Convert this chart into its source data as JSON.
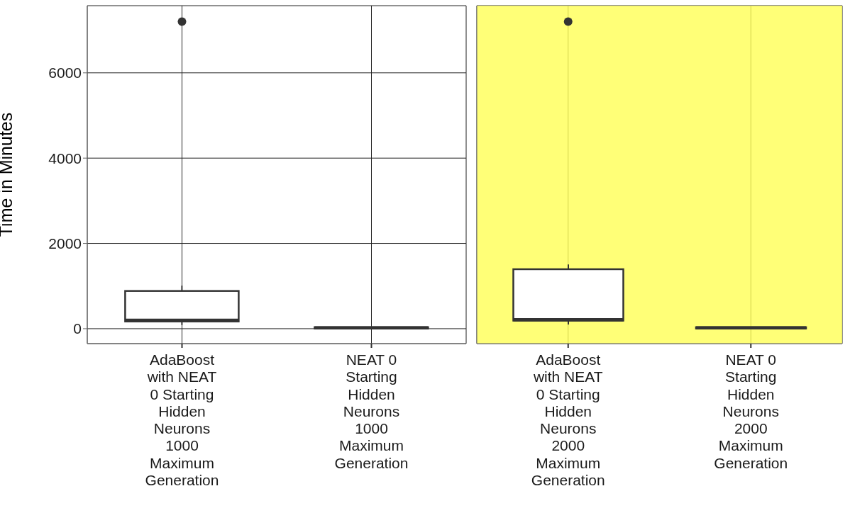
{
  "chart_data": [
    {
      "type": "box",
      "ylabel": "Time in Minutes",
      "categories": [
        "AdaBoost with NEAT 0 Starting Hidden Neurons 1000 Maximum Generation",
        "NEAT 0 Starting Hidden Neurons 1000 Maximum Generation"
      ],
      "boxes": [
        {
          "low": 85,
          "q1": 170,
          "median": 200,
          "q3": 885,
          "high": 1010,
          "outliers": [
            7200
          ]
        },
        {
          "low": 0,
          "q1": 5,
          "median": 20,
          "q3": 35,
          "high": 45
        }
      ],
      "color": "#333333",
      "ylim": [
        -350,
        7575
      ],
      "yticks": [
        0,
        2000,
        4000,
        6000
      ],
      "grid": true
    },
    {
      "type": "box",
      "categories": [
        "AdaBoost with NEAT 0 Starting Hidden Neurons 2000 Maximum Generation",
        "NEAT 0 Starting Hidden Neurons 2000 Maximum Generation"
      ],
      "boxes": [
        {
          "low": 100,
          "q1": 190,
          "median": 210,
          "q3": 1395,
          "high": 1505,
          "outliers": [
            7200
          ]
        },
        {
          "low": 0,
          "q1": 5,
          "median": 20,
          "q3": 35,
          "high": 45
        }
      ],
      "color": "#333333",
      "ylim": [
        -350,
        7575
      ],
      "yticks": [
        0,
        2000,
        4000,
        6000
      ],
      "grid": true,
      "tick_labels": "x",
      "bands": [
        {
          "axis": "y",
          "from": -350,
          "to": 7575,
          "color": "#ffff55"
        }
      ]
    }
  ]
}
